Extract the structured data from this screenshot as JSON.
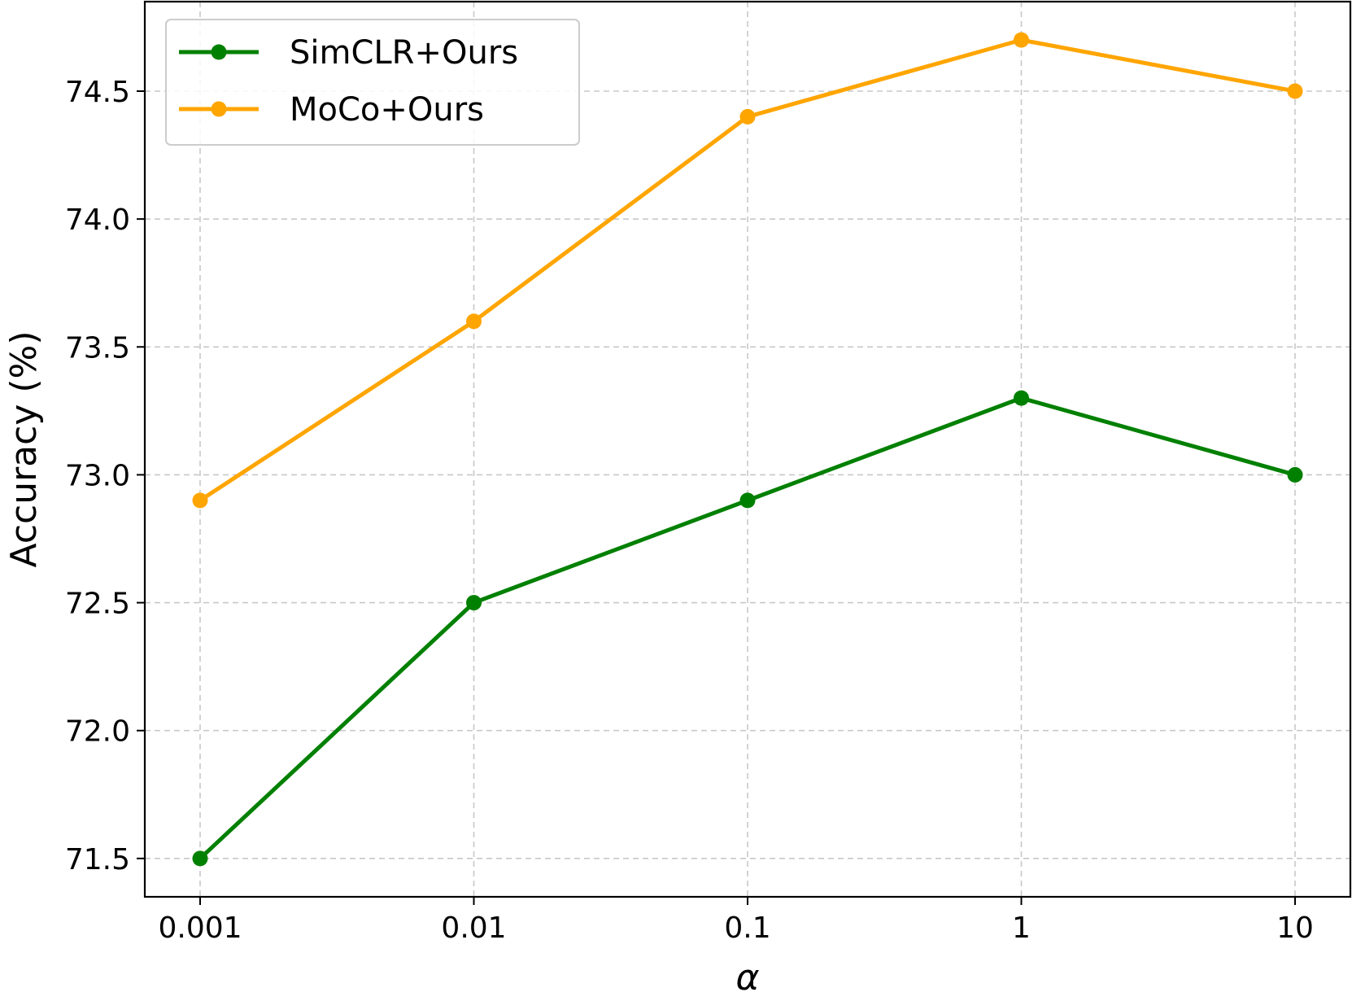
{
  "chart_data": {
    "type": "line",
    "categories": [
      "0.001",
      "0.01",
      "0.1",
      "1",
      "10"
    ],
    "xlabel": "α",
    "ylabel": "Accuracy (%)",
    "ylim": [
      71.35,
      74.85
    ],
    "yticks": [
      "71.5",
      "72.0",
      "72.5",
      "73.0",
      "73.5",
      "74.0",
      "74.5"
    ],
    "grid": true,
    "legend_position": "top-left",
    "series": [
      {
        "name": "SimCLR+Ours",
        "color": "#008000",
        "values": [
          71.5,
          72.5,
          72.9,
          73.3,
          73.0
        ]
      },
      {
        "name": "MoCo+Ours",
        "color": "#FFA500",
        "values": [
          72.9,
          73.6,
          74.4,
          74.7,
          74.5
        ]
      }
    ]
  }
}
